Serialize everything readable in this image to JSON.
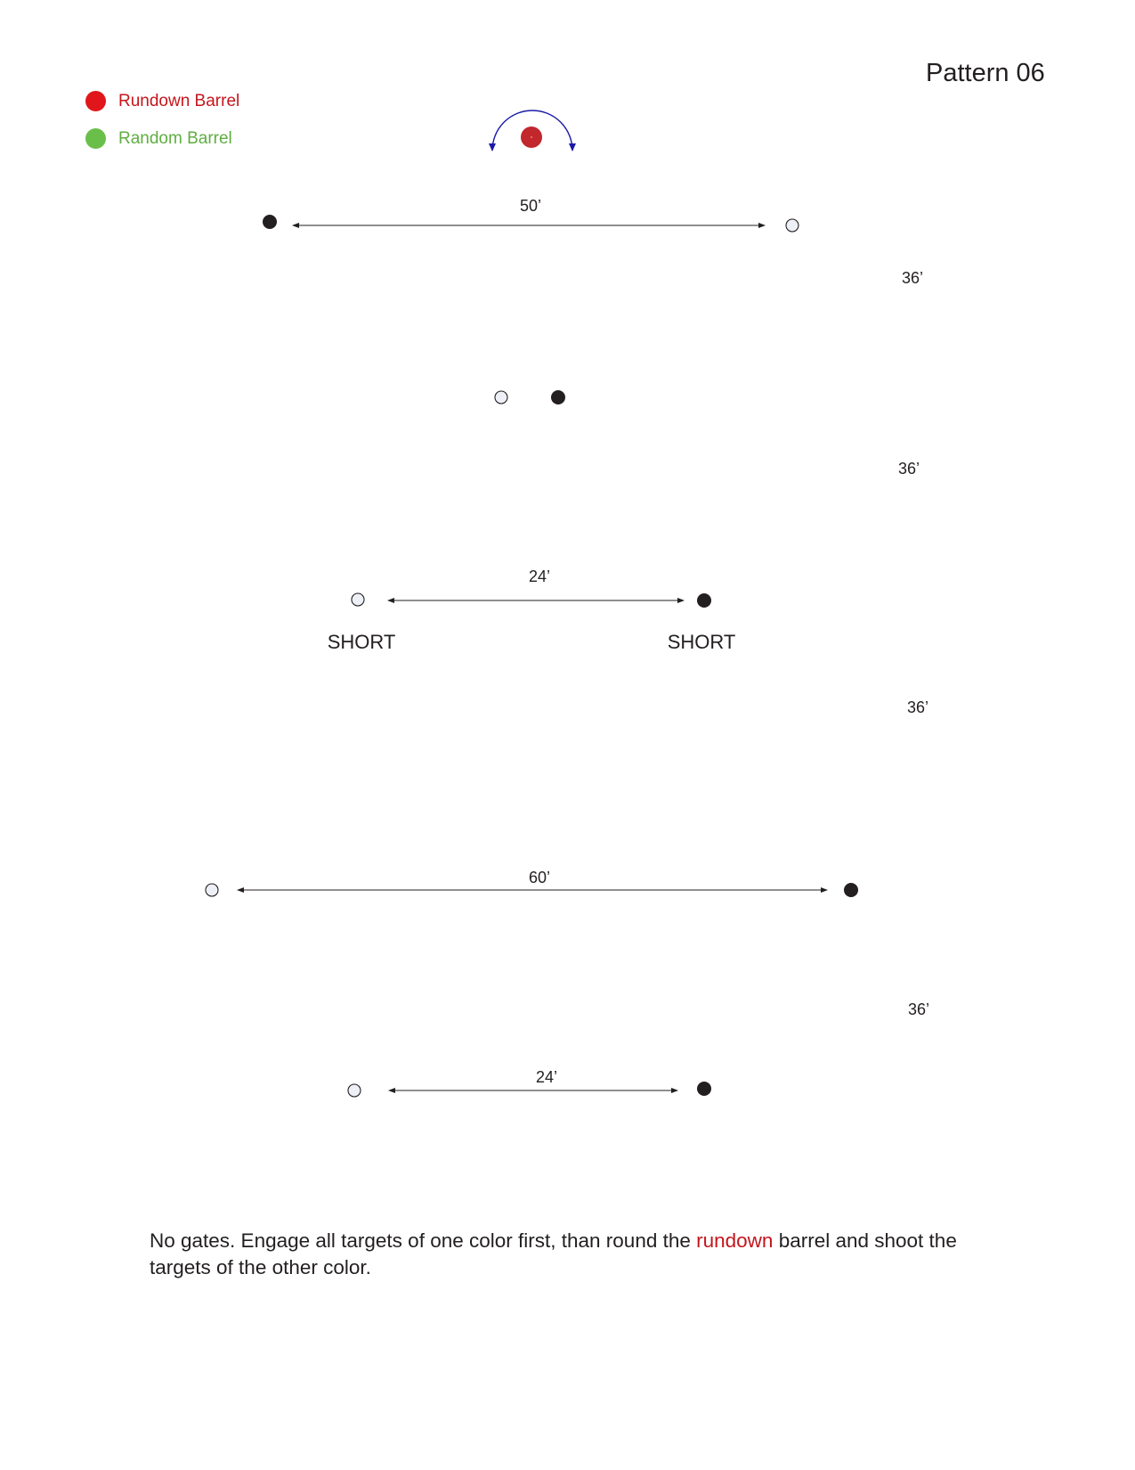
{
  "title": "Pattern 06",
  "colors": {
    "rundown": "#e0161b",
    "rundown_barrel_fill": "#c1272d",
    "random": "#6abf4b",
    "arc": "#1a1aa6",
    "filled_target": "#231f20",
    "open_target_fill": "#eef0f8",
    "highlight_text": "#c4161c"
  },
  "legend": [
    {
      "label": "Rundown Barrel",
      "color": "#e0161b"
    },
    {
      "label": "Random Barrel",
      "color": "#6abf4b"
    }
  ],
  "rows": [
    {
      "distance_label": "50’",
      "left_target": "filled",
      "right_target": "open"
    },
    {
      "distance_label": "",
      "left_target": "open",
      "right_target": "filled"
    },
    {
      "distance_label": "24’",
      "left_target": "open",
      "right_target": "filled",
      "left_note": "SHORT",
      "right_note": "SHORT"
    },
    {
      "distance_label": "60’",
      "left_target": "open",
      "right_target": "filled"
    },
    {
      "distance_label": "24’",
      "left_target": "open",
      "right_target": "filled"
    }
  ],
  "segment_labels": [
    "36’",
    "36’",
    "36’",
    "36’"
  ],
  "instructions": {
    "before": "No gates. Engage all targets of one color first, than round the ",
    "highlight": "rundown",
    "after": " barrel and shoot the targets of the other color."
  }
}
